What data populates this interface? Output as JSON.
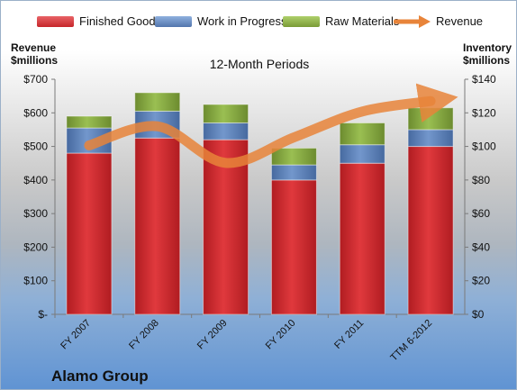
{
  "company": "Alamo Group",
  "legend": {
    "finished_goods": "Finished Goods",
    "work_in_progress": "Work in Progress",
    "raw_materials": "Raw Materials",
    "revenue": "Revenue"
  },
  "axes": {
    "left_title_line1": "Revenue",
    "left_title_line2": "$millions",
    "right_title_line1": "Inventory",
    "right_title_line2": "$millions"
  },
  "colors": {
    "finished_goods": "#cc2b2e",
    "work_in_progress": "#5b81b8",
    "raw_materials": "#86a83f",
    "revenue": "#e8843a"
  },
  "chart_data": {
    "type": "bar",
    "stacked": true,
    "title": "12-Month Periods",
    "categories": [
      "FY 2007",
      "FY 2008",
      "FY 2009",
      "FY 2010",
      "FY 2011",
      "TTM 6-2012"
    ],
    "series": [
      {
        "name": "Finished Goods",
        "axis": "right",
        "values": [
          96,
          105,
          104,
          80,
          90,
          100
        ]
      },
      {
        "name": "Work in Progress",
        "axis": "right",
        "values": [
          15,
          16,
          10,
          9,
          11,
          10
        ]
      },
      {
        "name": "Raw Materials",
        "axis": "right",
        "values": [
          7,
          11,
          11,
          10,
          13,
          13
        ]
      },
      {
        "name": "Revenue",
        "axis": "left",
        "type": "line",
        "values": [
          503,
          560,
          451,
          527,
          604,
          635
        ]
      }
    ],
    "ylabel": "Revenue $millions",
    "y2label": "Inventory $millions",
    "ylim": [
      0,
      700
    ],
    "y2lim": [
      0,
      140
    ],
    "yticks": [
      "$-",
      "$100",
      "$200",
      "$300",
      "$400",
      "$500",
      "$600",
      "$700"
    ],
    "y2ticks": [
      "$0",
      "$20",
      "$40",
      "$60",
      "$80",
      "$100",
      "$120",
      "$140"
    ],
    "legend_position": "top",
    "grid": false
  }
}
